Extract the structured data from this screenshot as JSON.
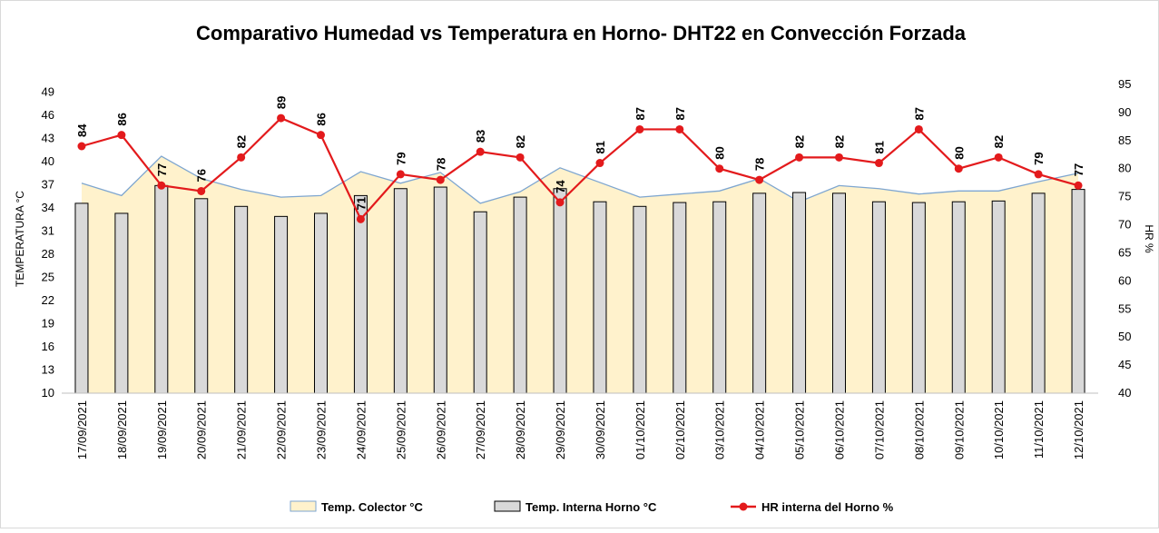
{
  "chart_data": {
    "type": "combo",
    "title": "Comparativo Humedad vs Temperatura en Horno- DHT22 en Convección Forzada",
    "y_label": "TEMPERATURA °C",
    "y2_label": "HR %",
    "categories": [
      "17/09/2021",
      "18/09/2021",
      "19/09/2021",
      "20/09/2021",
      "21/09/2021",
      "22/09/2021",
      "23/09/2021",
      "24/09/2021",
      "25/09/2021",
      "26/09/2021",
      "27/09/2021",
      "28/09/2021",
      "29/09/2021",
      "30/09/2021",
      "01/10/2021",
      "02/10/2021",
      "03/10/2021",
      "04/10/2021",
      "05/10/2021",
      "06/10/2021",
      "07/10/2021",
      "08/10/2021",
      "09/10/2021",
      "10/10/2021",
      "11/10/2021",
      "12/10/2021"
    ],
    "ylim": [
      10,
      50
    ],
    "yticks": [
      10,
      13,
      16,
      19,
      22,
      25,
      28,
      31,
      34,
      37,
      40,
      43,
      46,
      49
    ],
    "y2lim": [
      40,
      95
    ],
    "y2ticks": [
      40,
      45,
      50,
      55,
      60,
      65,
      70,
      75,
      80,
      85,
      90,
      95
    ],
    "legend": "bottom",
    "series": [
      {
        "name": "Temp. Colector °C",
        "type": "area",
        "color": "#fff2cc",
        "line_color": "#7ea6d0",
        "values": [
          37.2,
          35.6,
          40.7,
          37.8,
          36.4,
          35.4,
          35.6,
          38.7,
          37.2,
          38.6,
          34.6,
          36.1,
          39.2,
          37.3,
          35.4,
          35.8,
          36.2,
          37.8,
          34.8,
          36.9,
          36.5,
          35.8,
          36.2,
          36.2,
          37.4,
          38.5
        ]
      },
      {
        "name": "Temp. Interna Horno °C",
        "type": "bar",
        "color": "#d9d9d9",
        "values": [
          34.6,
          33.3,
          36.9,
          35.2,
          34.2,
          32.9,
          33.3,
          35.6,
          36.5,
          36.7,
          33.5,
          35.4,
          36.5,
          34.8,
          34.2,
          34.7,
          34.8,
          35.9,
          36.0,
          35.9,
          34.8,
          34.7,
          34.8,
          34.9,
          35.9,
          36.4
        ]
      },
      {
        "name": "HR interna del Horno %",
        "type": "line",
        "axis": "y2",
        "color": "#e31a1c",
        "values": [
          84,
          86,
          77,
          76,
          82,
          89,
          86,
          71,
          79,
          78,
          83,
          82,
          74,
          81,
          87,
          87,
          80,
          78,
          82,
          82,
          81,
          87,
          80,
          82,
          79,
          77
        ]
      }
    ]
  }
}
